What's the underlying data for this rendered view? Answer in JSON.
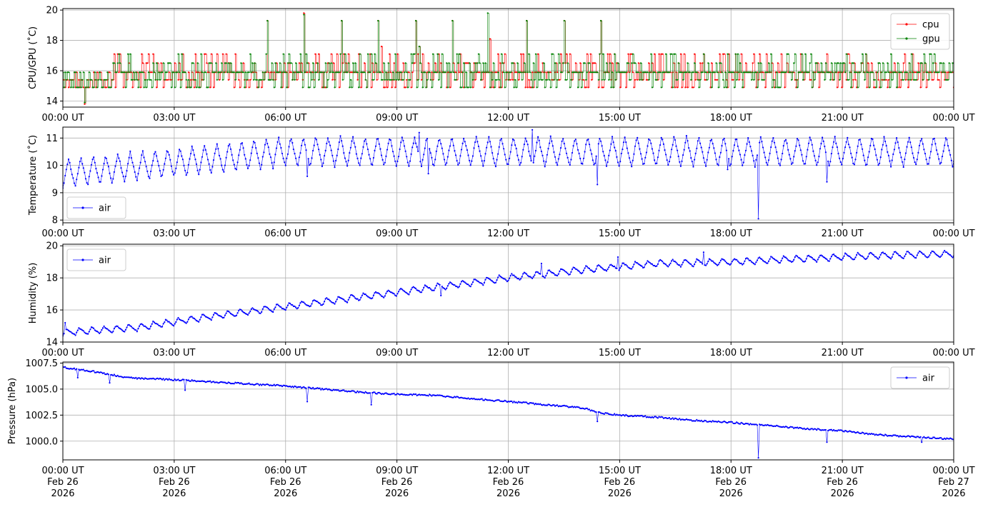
{
  "figure": {
    "time_axis": {
      "ticks": [
        0,
        3,
        6,
        9,
        12,
        15,
        18,
        21,
        24
      ],
      "tick_labels": [
        "00:00 UT",
        "03:00 UT",
        "06:00 UT",
        "09:00 UT",
        "12:00 UT",
        "15:00 UT",
        "18:00 UT",
        "21:00 UT",
        "00:00 UT"
      ],
      "date_labels": [
        "Feb 26",
        "Feb 26",
        "Feb 26",
        "Feb 26",
        "Feb 26",
        "Feb 26",
        "Feb 26",
        "Feb 26",
        "Feb 27"
      ],
      "year_labels": [
        "2026",
        "2026",
        "2026",
        "2026",
        "2026",
        "2026",
        "2026",
        "2026",
        "2026"
      ]
    }
  },
  "chart_data": [
    {
      "type": "line",
      "title": "",
      "xlabel": "",
      "ylabel": "CPU/GPU (˚C)",
      "xlim": [
        0,
        24
      ],
      "ylim": [
        13.6,
        20.1
      ],
      "yticks": [
        14,
        16,
        18,
        20
      ],
      "ytick_labels": [
        "14",
        "16",
        "18",
        "20"
      ],
      "grid": true,
      "legend": "upper right",
      "kind": "cpu_gpu",
      "series": [
        {
          "name": "cpu",
          "color": "#ff0000",
          "base": 15.9,
          "levels": [
            14.9,
            15.4,
            15.9,
            16.5,
            17.1
          ],
          "spikes": [
            [
              0.58,
              13.8
            ],
            [
              5.5,
              19.3
            ],
            [
              6.5,
              19.8
            ],
            [
              7.5,
              19.3
            ],
            [
              8.5,
              19.3
            ],
            [
              9.5,
              19.3
            ],
            [
              10.5,
              19.3
            ],
            [
              11.5,
              18.1
            ],
            [
              12.5,
              19.3
            ],
            [
              13.5,
              19.3
            ],
            [
              14.5,
              19.3
            ],
            [
              8.6,
              17.6
            ],
            [
              9.6,
              17.6
            ]
          ]
        },
        {
          "name": "gpu",
          "color": "#008000",
          "base": 15.9,
          "levels": [
            14.9,
            15.4,
            15.9,
            16.5,
            17.1
          ],
          "spikes": [
            [
              0.6,
              13.9
            ],
            [
              5.5,
              19.3
            ],
            [
              6.5,
              19.7
            ],
            [
              7.5,
              19.3
            ],
            [
              8.5,
              19.3
            ],
            [
              9.5,
              19.3
            ],
            [
              10.5,
              19.3
            ],
            [
              11.45,
              19.8
            ],
            [
              12.5,
              19.3
            ],
            [
              13.5,
              19.3
            ],
            [
              14.5,
              19.3
            ],
            [
              9.6,
              17.6
            ]
          ]
        }
      ]
    },
    {
      "type": "line",
      "title": "",
      "xlabel": "",
      "ylabel": "Temperature (˚C)",
      "xlim": [
        0,
        24
      ],
      "ylim": [
        7.9,
        11.4
      ],
      "yticks": [
        8,
        9,
        10,
        11
      ],
      "ytick_labels": [
        "8",
        "9",
        "10",
        "11"
      ],
      "grid": true,
      "legend": "lower left",
      "kind": "temperature",
      "series": [
        {
          "name": "air",
          "color": "#0000ff",
          "period_hours": 0.333,
          "amplitude": 0.55,
          "base_start": 9.7,
          "base_end": 10.5,
          "spikes": [
            [
              18.75,
              8.05
            ],
            [
              14.4,
              9.3
            ],
            [
              20.6,
              9.4
            ],
            [
              12.65,
              11.3
            ],
            [
              9.6,
              11.2
            ],
            [
              6.6,
              9.6
            ],
            [
              9.85,
              9.7
            ],
            [
              17.9,
              9.85
            ]
          ]
        }
      ]
    },
    {
      "type": "line",
      "title": "",
      "xlabel": "",
      "ylabel": "Humidity (%)",
      "xlim": [
        0,
        24
      ],
      "ylim": [
        14.0,
        20.1
      ],
      "yticks": [
        14,
        16,
        18,
        20
      ],
      "ytick_labels": [
        "14",
        "16",
        "18",
        "20"
      ],
      "grid": true,
      "legend": "upper left",
      "kind": "humidity",
      "series": [
        {
          "name": "air",
          "color": "#0000ff",
          "period_hours": 0.333,
          "amplitude": 0.45,
          "base_points": [
            [
              0,
              14.6
            ],
            [
              2,
              14.9
            ],
            [
              4,
              15.6
            ],
            [
              6,
              16.2
            ],
            [
              8,
              16.8
            ],
            [
              10,
              17.4
            ],
            [
              12,
              18.0
            ],
            [
              14,
              18.5
            ],
            [
              16,
              18.9
            ],
            [
              18,
              19.0
            ],
            [
              20,
              19.2
            ],
            [
              22,
              19.4
            ],
            [
              24,
              19.5
            ]
          ],
          "spikes": [
            [
              0.05,
              15.2
            ],
            [
              12.9,
              18.9
            ],
            [
              14.95,
              19.3
            ],
            [
              17.25,
              19.6
            ],
            [
              10.2,
              16.9
            ]
          ]
        }
      ]
    },
    {
      "type": "line",
      "title": "",
      "xlabel": "",
      "ylabel": "Pressure (hPa)",
      "xlim": [
        0,
        24
      ],
      "ylim": [
        998.2,
        1007.6
      ],
      "yticks": [
        1000.0,
        1002.5,
        1005.0,
        1007.5
      ],
      "ytick_labels": [
        "1000.0",
        "1002.5",
        "1005.0",
        "1007.5"
      ],
      "grid": true,
      "legend": "upper right",
      "kind": "pressure",
      "series": [
        {
          "name": "air",
          "color": "#0000ff",
          "base_points": [
            [
              0,
              1007.1
            ],
            [
              1,
              1006.6
            ],
            [
              1.7,
              1006.1
            ],
            [
              3,
              1005.9
            ],
            [
              5,
              1005.5
            ],
            [
              6,
              1005.3
            ],
            [
              8,
              1004.7
            ],
            [
              9,
              1004.5
            ],
            [
              10,
              1004.4
            ],
            [
              11,
              1004.1
            ],
            [
              12,
              1003.8
            ],
            [
              13,
              1003.5
            ],
            [
              14,
              1003.2
            ],
            [
              14.5,
              1002.7
            ],
            [
              15,
              1002.5
            ],
            [
              16,
              1002.3
            ],
            [
              17,
              1002.0
            ],
            [
              18,
              1001.8
            ],
            [
              19,
              1001.5
            ],
            [
              20,
              1001.2
            ],
            [
              21,
              1001.0
            ],
            [
              22,
              1000.6
            ],
            [
              23,
              1000.4
            ],
            [
              24,
              1000.2
            ]
          ],
          "spikes": [
            [
              18.75,
              998.4
            ],
            [
              14.4,
              1004.0
            ],
            [
              14.4,
              1001.9
            ],
            [
              6.6,
              1003.8
            ],
            [
              8.3,
              1003.5
            ],
            [
              20.6,
              999.9
            ],
            [
              0.4,
              1006.1
            ],
            [
              1.25,
              1005.6
            ],
            [
              3.3,
              1004.9
            ],
            [
              23.15,
              999.9
            ]
          ]
        }
      ]
    }
  ]
}
